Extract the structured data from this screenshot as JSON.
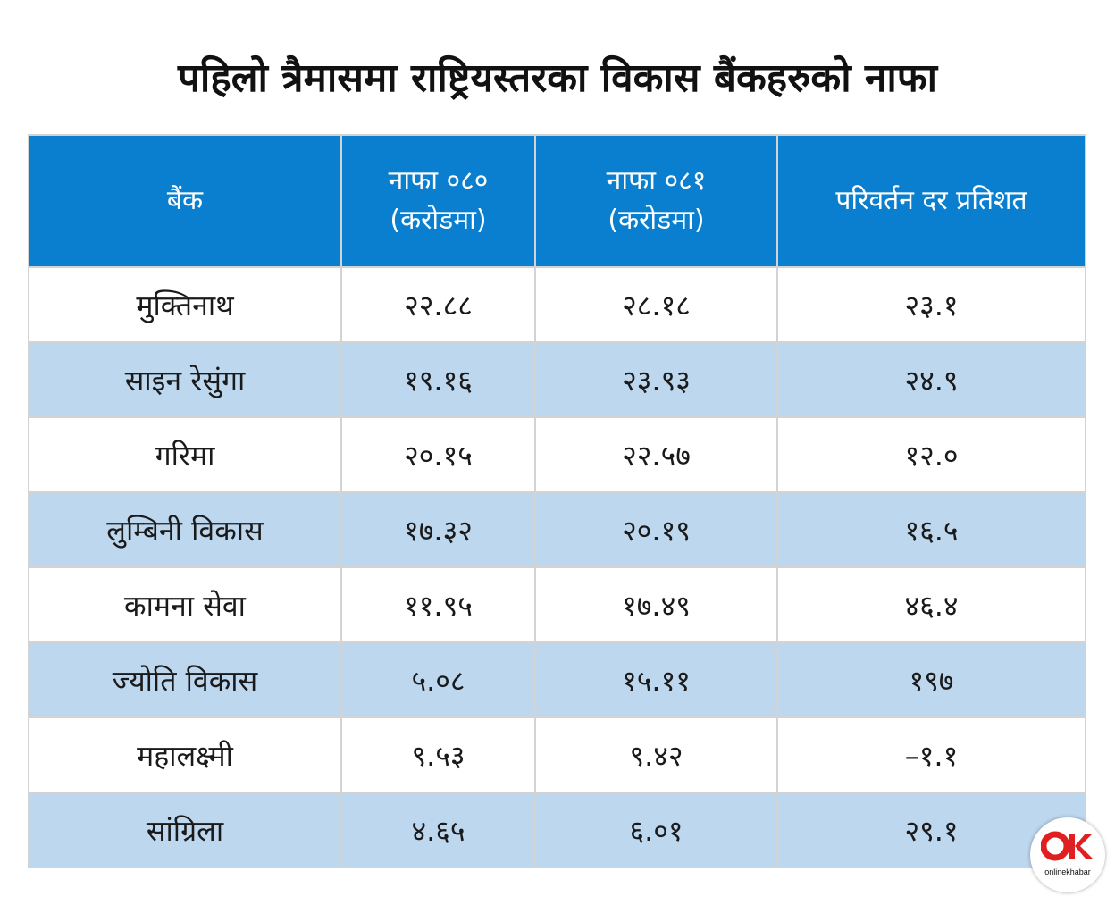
{
  "title": "पहिलो त्रैमासमा राष्ट्रियस्तरका विकास बैंकहरुको नाफा",
  "headers": {
    "bank": "बैंक",
    "profit_080_line1": "नाफा ०८०",
    "profit_080_line2": "(करोडमा)",
    "profit_081_line1": "नाफा ०८१",
    "profit_081_line2": "(करोडमा)",
    "change_rate": "परिवर्तन दर प्रतिशत"
  },
  "rows": [
    {
      "bank": "मुक्तिनाथ",
      "profit_080": "२२.८८",
      "profit_081": "२८.१८",
      "change": "२३.१"
    },
    {
      "bank": "साइन रेसुंगा",
      "profit_080": "१९.१६",
      "profit_081": "२३.९३",
      "change": "२४.९"
    },
    {
      "bank": "गरिमा",
      "profit_080": "२०.१५",
      "profit_081": "२२.५७",
      "change": "१२.०"
    },
    {
      "bank": "लुम्बिनी विकास",
      "profit_080": "१७.३२",
      "profit_081": "२०.१९",
      "change": "१६.५"
    },
    {
      "bank": "कामना सेवा",
      "profit_080": "११.९५",
      "profit_081": "१७.४९",
      "change": "४६.४"
    },
    {
      "bank": "ज्योति विकास",
      "profit_080": "५.०८",
      "profit_081": "१५.११",
      "change": "१९७"
    },
    {
      "bank": "महालक्ष्मी",
      "profit_080": "९.५३",
      "profit_081": "९.४२",
      "change": "–१.१"
    },
    {
      "bank": "सांग्रिला",
      "profit_080": "४.६५",
      "profit_081": "६.०१",
      "change": "२९.१"
    }
  ],
  "logo": {
    "caption": "onlinekhabar",
    "brand_color": "#e02020",
    "icon": "ok-logo-icon"
  },
  "colors": {
    "header_bg": "#0a7fcf",
    "stripe_bg": "#bdd7ef"
  }
}
